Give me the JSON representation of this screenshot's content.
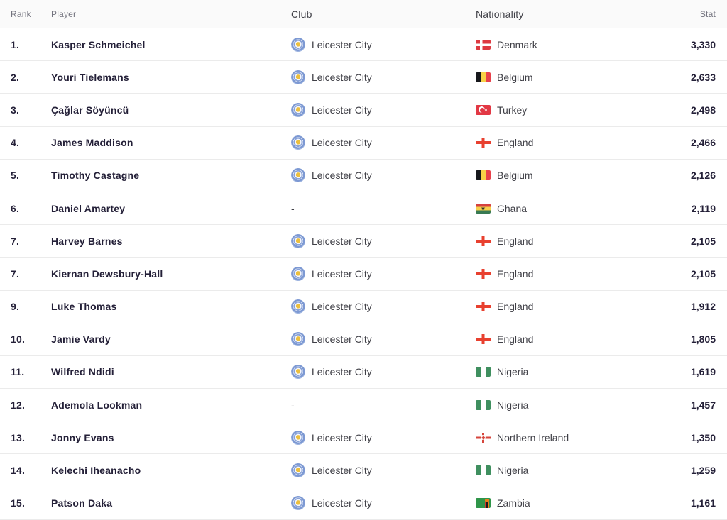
{
  "colors": {
    "header_bg": "#fafafa",
    "header_text": "#73737e",
    "row_border": "#ebebeb",
    "text_primary": "#242038",
    "text_secondary": "#3f3f46",
    "badge_blue": "#7d99d3",
    "badge_gold": "#ecbf3e"
  },
  "table": {
    "columns": {
      "rank": "Rank",
      "player": "Player",
      "club": "Club",
      "nationality": "Nationality",
      "stat": "Stat"
    },
    "rows": [
      {
        "rank": "1.",
        "player": "Kasper Schmeichel",
        "club": "Leicester City",
        "club_badge": true,
        "nationality": "Denmark",
        "flag": "denmark",
        "stat": "3,330"
      },
      {
        "rank": "2.",
        "player": "Youri Tielemans",
        "club": "Leicester City",
        "club_badge": true,
        "nationality": "Belgium",
        "flag": "belgium",
        "stat": "2,633"
      },
      {
        "rank": "3.",
        "player": "Çağlar Söyüncü",
        "club": "Leicester City",
        "club_badge": true,
        "nationality": "Turkey",
        "flag": "turkey",
        "stat": "2,498"
      },
      {
        "rank": "4.",
        "player": "James Maddison",
        "club": "Leicester City",
        "club_badge": true,
        "nationality": "England",
        "flag": "england",
        "stat": "2,466"
      },
      {
        "rank": "5.",
        "player": "Timothy Castagne",
        "club": "Leicester City",
        "club_badge": true,
        "nationality": "Belgium",
        "flag": "belgium",
        "stat": "2,126"
      },
      {
        "rank": "6.",
        "player": "Daniel Amartey",
        "club": "-",
        "club_badge": false,
        "nationality": "Ghana",
        "flag": "ghana",
        "stat": "2,119"
      },
      {
        "rank": "7.",
        "player": "Harvey Barnes",
        "club": "Leicester City",
        "club_badge": true,
        "nationality": "England",
        "flag": "england",
        "stat": "2,105"
      },
      {
        "rank": "7.",
        "player": "Kiernan Dewsbury-Hall",
        "club": "Leicester City",
        "club_badge": true,
        "nationality": "England",
        "flag": "england",
        "stat": "2,105"
      },
      {
        "rank": "9.",
        "player": "Luke Thomas",
        "club": "Leicester City",
        "club_badge": true,
        "nationality": "England",
        "flag": "england",
        "stat": "1,912"
      },
      {
        "rank": "10.",
        "player": "Jamie Vardy",
        "club": "Leicester City",
        "club_badge": true,
        "nationality": "England",
        "flag": "england",
        "stat": "1,805"
      },
      {
        "rank": "11.",
        "player": "Wilfred Ndidi",
        "club": "Leicester City",
        "club_badge": true,
        "nationality": "Nigeria",
        "flag": "nigeria",
        "stat": "1,619"
      },
      {
        "rank": "12.",
        "player": "Ademola Lookman",
        "club": "-",
        "club_badge": false,
        "nationality": "Nigeria",
        "flag": "nigeria",
        "stat": "1,457"
      },
      {
        "rank": "13.",
        "player": "Jonny Evans",
        "club": "Leicester City",
        "club_badge": true,
        "nationality": "Northern Ireland",
        "flag": "northern-ireland",
        "stat": "1,350"
      },
      {
        "rank": "14.",
        "player": "Kelechi Iheanacho",
        "club": "Leicester City",
        "club_badge": true,
        "nationality": "Nigeria",
        "flag": "nigeria",
        "stat": "1,259"
      },
      {
        "rank": "15.",
        "player": "Patson Daka",
        "club": "Leicester City",
        "club_badge": true,
        "nationality": "Zambia",
        "flag": "zambia",
        "stat": "1,161"
      }
    ]
  }
}
